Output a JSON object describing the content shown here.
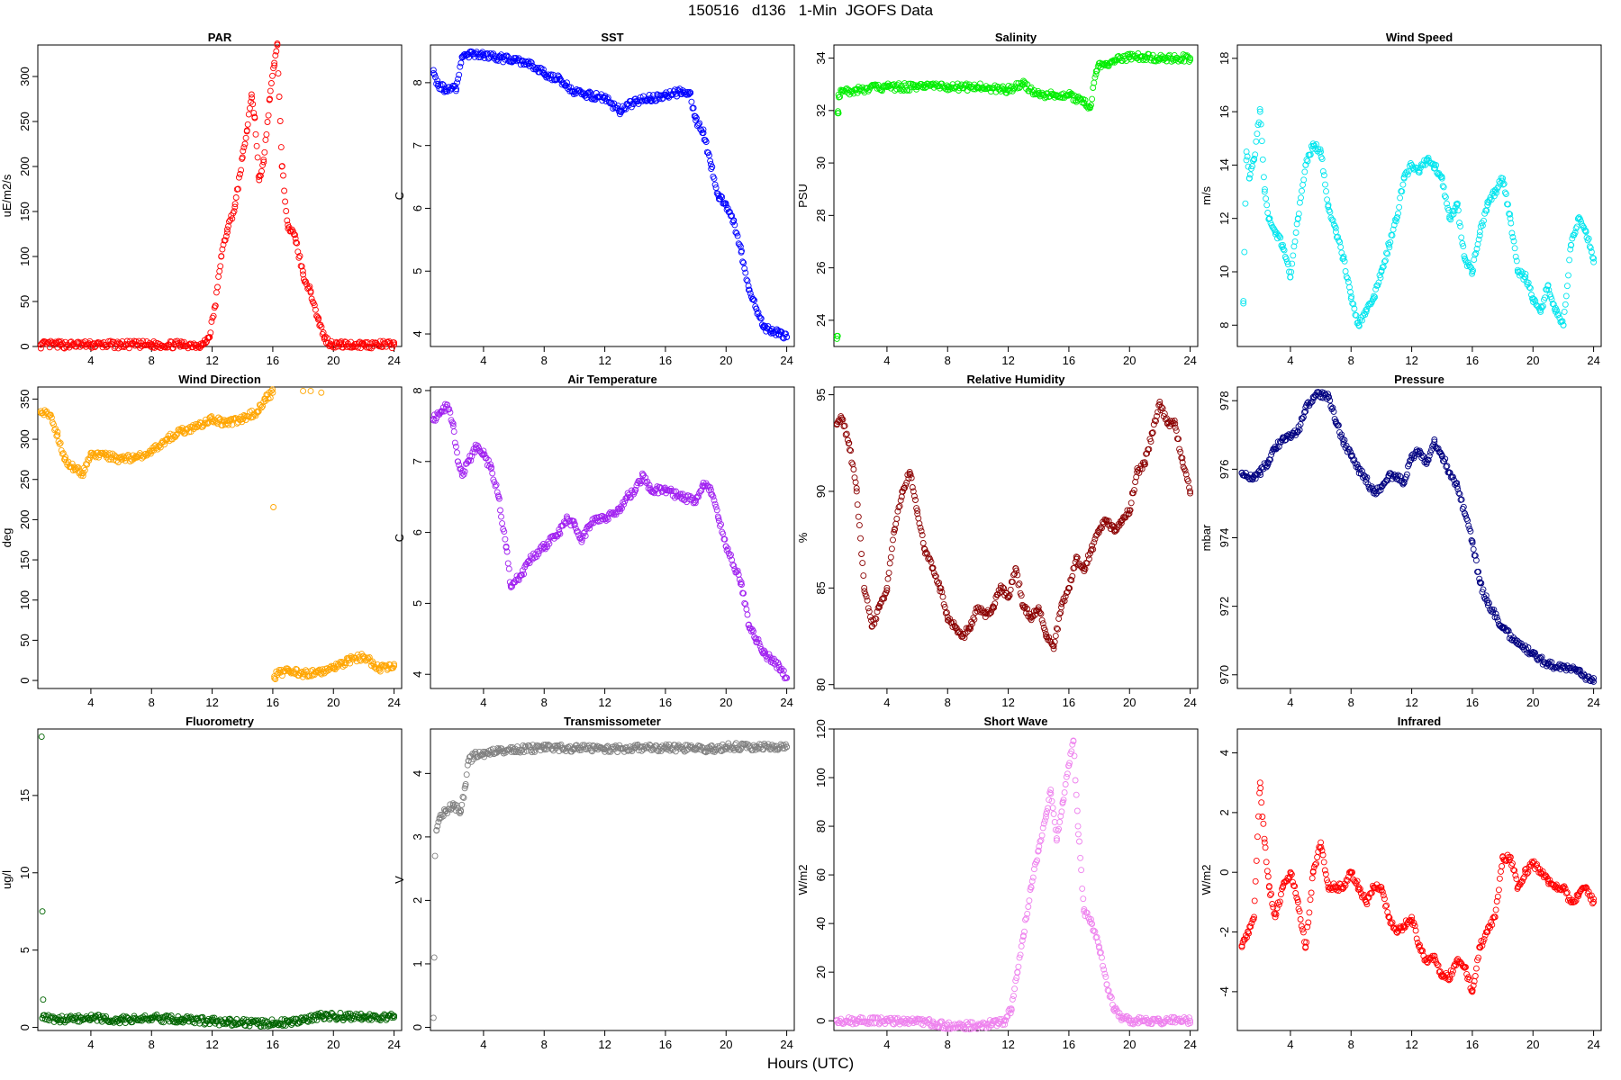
{
  "title": "150516   d136   1-Min  JGOFS Data",
  "xlabel": "Hours (UTC)",
  "chart_data": [
    {
      "type": "scatter",
      "title": "PAR",
      "ylabel": "uE/m2/s",
      "color": "#ff0000",
      "xlim": [
        0.5,
        24.5
      ],
      "ylim": [
        0,
        335
      ],
      "xticks": [
        4,
        8,
        12,
        16,
        20,
        24
      ],
      "yticks": [
        0,
        50,
        100,
        150,
        200,
        250,
        300
      ],
      "x": [
        0.7,
        2,
        4,
        6,
        8,
        10,
        11.4,
        11.8,
        12.2,
        12.6,
        13,
        13.5,
        14,
        14.3,
        14.6,
        14.8,
        15.1,
        15.4,
        15.8,
        16.1,
        16.3,
        16.6,
        17,
        17.5,
        18,
        18.5,
        19,
        19.4,
        19.8,
        20.5,
        22,
        24
      ],
      "y": [
        2,
        2,
        2,
        2,
        2,
        2,
        2,
        10,
        45,
        100,
        130,
        155,
        210,
        240,
        280,
        255,
        185,
        205,
        275,
        315,
        335,
        200,
        135,
        120,
        80,
        60,
        30,
        10,
        3,
        2,
        2,
        2
      ]
    },
    {
      "type": "scatter",
      "title": "SST",
      "ylabel": "C",
      "color": "#0000ff",
      "xlim": [
        0.5,
        24.5
      ],
      "ylim": [
        3.8,
        8.6
      ],
      "xticks": [
        4,
        8,
        12,
        16,
        20,
        24
      ],
      "yticks": [
        4,
        5,
        6,
        7,
        8
      ],
      "x": [
        0.7,
        1,
        1.5,
        2,
        2.2,
        2.6,
        3,
        4,
        5,
        6,
        7,
        8,
        9,
        10,
        11,
        12,
        13,
        14,
        15,
        16,
        17,
        17.6,
        18,
        18.5,
        19,
        19.5,
        20,
        20.5,
        21,
        21.5,
        22,
        22.5,
        23,
        23.5,
        24
      ],
      "y": [
        8.2,
        7.95,
        7.9,
        7.95,
        7.9,
        8.4,
        8.45,
        8.45,
        8.4,
        8.35,
        8.3,
        8.15,
        8.05,
        7.85,
        7.8,
        7.75,
        7.55,
        7.7,
        7.75,
        7.8,
        7.85,
        7.85,
        7.4,
        7.2,
        6.7,
        6.2,
        6.05,
        5.8,
        5.3,
        4.7,
        4.4,
        4.1,
        4.05,
        4.0,
        3.95
      ]
    },
    {
      "type": "scatter",
      "title": "Salinity",
      "ylabel": "PSU",
      "color": "#00ee00",
      "xlim": [
        0.5,
        24.5
      ],
      "ylim": [
        23,
        34.5
      ],
      "xticks": [
        4,
        8,
        12,
        16,
        20,
        24
      ],
      "yticks": [
        24,
        26,
        28,
        30,
        32,
        34
      ],
      "x": [
        0.7,
        0.75,
        0.8,
        1,
        2,
        4,
        6,
        8,
        10,
        12,
        13,
        14,
        15,
        16,
        16.6,
        17,
        17.4,
        17.8,
        18,
        18.5,
        19,
        20,
        21,
        22,
        24
      ],
      "y": [
        23.4,
        31.9,
        32.6,
        32.7,
        32.8,
        32.9,
        32.9,
        32.9,
        32.9,
        32.8,
        33.0,
        32.6,
        32.6,
        32.6,
        32.4,
        32.3,
        32.1,
        33.5,
        33.7,
        33.8,
        33.9,
        34.05,
        34.05,
        34.0,
        34.0
      ],
      "outliers": [
        [
          0.75,
          23.4
        ],
        [
          0.8,
          31.9
        ]
      ]
    },
    {
      "type": "scatter",
      "title": "Wind Speed",
      "ylabel": "m/s",
      "color": "#00e5ee",
      "xlim": [
        0.5,
        24.5
      ],
      "ylim": [
        7.2,
        18.5
      ],
      "xticks": [
        4,
        8,
        12,
        16,
        20,
        24
      ],
      "yticks": [
        8,
        10,
        12,
        14,
        16,
        18
      ],
      "x": [
        0.9,
        1.1,
        1.3,
        1.6,
        2,
        2.3,
        2.6,
        3,
        3.5,
        4,
        4.5,
        5,
        5.5,
        6,
        6.5,
        7,
        7.5,
        8,
        8.5,
        9,
        9.5,
        10,
        10.5,
        11,
        11.5,
        12,
        12.5,
        13,
        13.5,
        14,
        14.5,
        15,
        15.5,
        16,
        16.5,
        17,
        17.5,
        18,
        18.5,
        19,
        19.5,
        20,
        20.5,
        21,
        21.5,
        22,
        22.5,
        23,
        23.5,
        24
      ],
      "y": [
        8.9,
        14.5,
        13.5,
        14.2,
        16,
        13,
        12,
        11.5,
        11,
        9.8,
        12,
        14,
        14.8,
        14.5,
        12.5,
        11.5,
        10.5,
        9,
        8,
        8.5,
        9,
        10,
        11,
        12,
        13.5,
        14,
        13.8,
        14.2,
        14,
        13.5,
        12,
        12.5,
        10.5,
        10,
        11.5,
        12.5,
        13,
        13.5,
        12,
        10,
        9.8,
        9,
        8.5,
        9.5,
        8.5,
        8,
        11,
        12,
        11.5,
        10.5
      ]
    },
    {
      "type": "scatter",
      "title": "Wind Direction",
      "ylabel": "deg",
      "color": "#ffa500",
      "xlim": [
        0.5,
        24.5
      ],
      "ylim": [
        -10,
        365
      ],
      "xticks": [
        4,
        8,
        12,
        16,
        20,
        24
      ],
      "yticks": [
        0,
        50,
        100,
        150,
        200,
        250,
        300,
        350
      ],
      "x": [
        0.7,
        1.3,
        1.8,
        2.3,
        3,
        3.5,
        4,
        5,
        6,
        7,
        8,
        9,
        10,
        11,
        12,
        13,
        14,
        15,
        15.5,
        16,
        16.1,
        16.5,
        17,
        18,
        19,
        20,
        21,
        22,
        23,
        24
      ],
      "y": [
        335,
        330,
        305,
        275,
        262,
        258,
        280,
        280,
        275,
        278,
        285,
        300,
        310,
        315,
        325,
        320,
        325,
        335,
        350,
        358,
        5,
        10,
        12,
        8,
        10,
        15,
        25,
        30,
        15,
        18
      ],
      "extra": [
        [
          18,
          360
        ],
        [
          18.5,
          360
        ],
        [
          19.2,
          358
        ]
      ]
    },
    {
      "type": "scatter",
      "title": "Air Temperature",
      "ylabel": "C",
      "color": "#a020f0",
      "xlim": [
        0.5,
        24.5
      ],
      "ylim": [
        3.8,
        8.05
      ],
      "xticks": [
        4,
        8,
        12,
        16,
        20,
        24
      ],
      "yticks": [
        4,
        5,
        6,
        7,
        8
      ],
      "x": [
        0.7,
        1.2,
        1.6,
        2,
        2.3,
        2.6,
        3,
        3.5,
        4,
        4.5,
        5,
        5.5,
        5.8,
        6,
        6.5,
        7,
        8,
        9,
        9.5,
        10,
        10.5,
        11,
        11.5,
        12,
        13,
        13.5,
        14,
        14.5,
        15,
        16,
        17,
        18,
        18.5,
        19,
        19.5,
        20,
        21,
        21.5,
        22,
        22.5,
        23,
        23.5,
        24
      ],
      "y": [
        7.6,
        7.7,
        7.8,
        7.5,
        7.0,
        6.8,
        7.0,
        7.2,
        7.1,
        6.9,
        6.5,
        5.8,
        5.25,
        5.3,
        5.4,
        5.6,
        5.8,
        6.0,
        6.2,
        6.1,
        5.9,
        6.1,
        6.2,
        6.2,
        6.3,
        6.5,
        6.6,
        6.8,
        6.6,
        6.6,
        6.5,
        6.45,
        6.7,
        6.6,
        6.2,
        5.8,
        5.3,
        4.7,
        4.5,
        4.3,
        4.2,
        4.1,
        3.95
      ]
    },
    {
      "type": "scatter",
      "title": "Relative Humidity",
      "ylabel": "%",
      "color": "#8b0000",
      "xlim": [
        0.5,
        24.5
      ],
      "ylim": [
        79.8,
        95.4
      ],
      "xticks": [
        4,
        8,
        12,
        16,
        20,
        24
      ],
      "yticks": [
        80,
        85,
        90,
        95
      ],
      "x": [
        0.7,
        1,
        1.5,
        2,
        2.5,
        3,
        3.5,
        4,
        4.5,
        5,
        5.5,
        6,
        6.5,
        7,
        7.5,
        8,
        8.5,
        9,
        9.5,
        10,
        10.5,
        11,
        11.5,
        12,
        12.5,
        13,
        13.5,
        14,
        14.5,
        15,
        15.5,
        16,
        16.5,
        17,
        17.5,
        18,
        18.5,
        19,
        19.5,
        20,
        20.5,
        21,
        21.5,
        22,
        22.5,
        23,
        23.5,
        24
      ],
      "y": [
        93.5,
        93.8,
        92.5,
        90,
        85,
        83,
        84,
        85,
        88,
        90,
        91,
        89,
        87,
        86,
        85,
        83.5,
        83,
        82.5,
        83,
        84,
        83.5,
        84,
        85,
        84.5,
        86,
        84,
        83.5,
        84,
        82.5,
        82,
        84,
        85,
        86.5,
        86,
        87,
        88,
        88.5,
        88,
        88.5,
        89,
        91,
        91.5,
        93,
        94.5,
        93.5,
        93.5,
        91.5,
        90
      ]
    },
    {
      "type": "scatter",
      "title": "Pressure",
      "ylabel": "mbar",
      "color": "#000080",
      "xlim": [
        0.5,
        24.5
      ],
      "ylim": [
        969.6,
        978.4
      ],
      "xticks": [
        4,
        8,
        12,
        16,
        20,
        24
      ],
      "yticks": [
        970,
        972,
        974,
        976,
        978
      ],
      "x": [
        0.8,
        1.5,
        2,
        2.5,
        3,
        3.5,
        4,
        4.5,
        5,
        5.5,
        6,
        6.5,
        7,
        7.5,
        8,
        8.5,
        9,
        9.5,
        10,
        10.5,
        11,
        11.5,
        12,
        12.5,
        13,
        13.5,
        14,
        14.5,
        15,
        15.5,
        16,
        16.5,
        17,
        18,
        19,
        20,
        21,
        22,
        23,
        24
      ],
      "y": [
        975.9,
        975.7,
        975.9,
        976.2,
        976.6,
        976.9,
        977.0,
        977.1,
        977.8,
        978.1,
        978.2,
        978.1,
        977.4,
        976.8,
        976.4,
        976.0,
        975.7,
        975.3,
        975.5,
        975.8,
        975.8,
        975.6,
        976.4,
        976.5,
        976.2,
        976.8,
        976.4,
        975.9,
        975.5,
        974.7,
        973.9,
        972.7,
        972.1,
        971.4,
        970.9,
        970.6,
        970.3,
        970.2,
        970.1,
        969.8
      ]
    },
    {
      "type": "scatter",
      "title": "Fluorometry",
      "ylabel": "ug/l",
      "color": "#006400",
      "xlim": [
        0.5,
        24.5
      ],
      "ylim": [
        -0.2,
        19.3
      ],
      "xticks": [
        4,
        8,
        12,
        16,
        20,
        24
      ],
      "yticks": [
        0,
        5,
        10,
        15
      ],
      "x": [
        0.8,
        2,
        4,
        6,
        8,
        10,
        12,
        13,
        14,
        16,
        17,
        18,
        19,
        19.5,
        20,
        21,
        22,
        24
      ],
      "y": [
        0.6,
        0.5,
        0.6,
        0.5,
        0.6,
        0.5,
        0.4,
        0.35,
        0.3,
        0.3,
        0.35,
        0.5,
        0.7,
        0.8,
        0.7,
        0.7,
        0.65,
        0.65
      ],
      "outliers": [
        [
          0.75,
          18.8
        ],
        [
          0.8,
          7.5
        ],
        [
          0.85,
          1.8
        ]
      ]
    },
    {
      "type": "scatter",
      "title": "Transmissometer",
      "ylabel": "V",
      "color": "#808080",
      "xlim": [
        0.5,
        24.5
      ],
      "ylim": [
        -0.05,
        4.7
      ],
      "xticks": [
        4,
        8,
        12,
        16,
        20,
        24
      ],
      "yticks": [
        0,
        1,
        2,
        3,
        4
      ],
      "x": [
        0.9,
        1.1,
        1.5,
        2,
        2.5,
        2.8,
        3,
        3.5,
        4,
        5,
        6,
        8,
        10,
        12,
        14,
        16,
        18,
        19,
        20,
        22,
        24
      ],
      "y": [
        3.1,
        3.3,
        3.4,
        3.5,
        3.4,
        3.8,
        4.2,
        4.3,
        4.3,
        4.35,
        4.38,
        4.4,
        4.4,
        4.38,
        4.4,
        4.4,
        4.4,
        4.38,
        4.42,
        4.42,
        4.42
      ],
      "outliers": [
        [
          0.7,
          0.15
        ],
        [
          0.75,
          1.1
        ],
        [
          0.8,
          2.7
        ]
      ]
    },
    {
      "type": "scatter",
      "title": "Short Wave",
      "ylabel": "W/m2",
      "color": "#ee82ee",
      "xlim": [
        0.5,
        24.5
      ],
      "ylim": [
        -4,
        120
      ],
      "xticks": [
        4,
        8,
        12,
        16,
        20,
        24
      ],
      "yticks": [
        0,
        20,
        40,
        60,
        80,
        100,
        120
      ],
      "x": [
        0.7,
        2,
        4,
        6,
        7,
        8,
        9,
        10,
        11,
        11.8,
        12.2,
        12.6,
        13,
        13.5,
        14,
        14.5,
        14.8,
        15.2,
        15.6,
        16,
        16.3,
        16.6,
        17,
        17.5,
        18,
        18.5,
        19,
        19.5,
        20,
        21,
        22,
        24
      ],
      "y": [
        0,
        0,
        0,
        0,
        -1,
        -2,
        -2,
        -2,
        -1,
        0,
        5,
        20,
        35,
        55,
        70,
        85,
        95,
        75,
        90,
        105,
        115,
        80,
        45,
        40,
        30,
        15,
        5,
        1,
        0,
        0,
        0,
        0
      ]
    },
    {
      "type": "scatter",
      "title": "Infrared",
      "ylabel": "W/m2",
      "color": "#ff0000",
      "xlim": [
        0.5,
        24.5
      ],
      "ylim": [
        -5.3,
        4.8
      ],
      "xticks": [
        4,
        8,
        12,
        16,
        20,
        24
      ],
      "yticks": [
        -4,
        -2,
        0,
        2,
        4
      ],
      "x": [
        0.8,
        1.2,
        1.6,
        2,
        2.3,
        2.6,
        3,
        3.5,
        4,
        4.5,
        5,
        5.5,
        6,
        6.5,
        7,
        7.5,
        8,
        8.5,
        9,
        9.5,
        10,
        10.5,
        11,
        11.5,
        12,
        12.5,
        13,
        13.5,
        14,
        14.5,
        15,
        15.5,
        16,
        16.5,
        17,
        17.5,
        18,
        18.5,
        19,
        19.5,
        20,
        20.5,
        21,
        21.5,
        22,
        22.5,
        23,
        23.5,
        24
      ],
      "y": [
        -2.5,
        -2,
        -1.5,
        3,
        1,
        -0.5,
        -1.5,
        -0.5,
        0,
        -1,
        -2.5,
        0,
        1,
        -0.5,
        -0.5,
        -0.5,
        0,
        -0.5,
        -1,
        -0.5,
        -0.5,
        -1.5,
        -2,
        -1.8,
        -1.5,
        -2.5,
        -3,
        -2.8,
        -3.5,
        -3.5,
        -3,
        -3.2,
        -4,
        -2.5,
        -2,
        -1.5,
        0.5,
        0.5,
        -0.5,
        0,
        0.3,
        0,
        -0.3,
        -0.5,
        -0.5,
        -1,
        -0.8,
        -0.5,
        -1
      ]
    }
  ]
}
